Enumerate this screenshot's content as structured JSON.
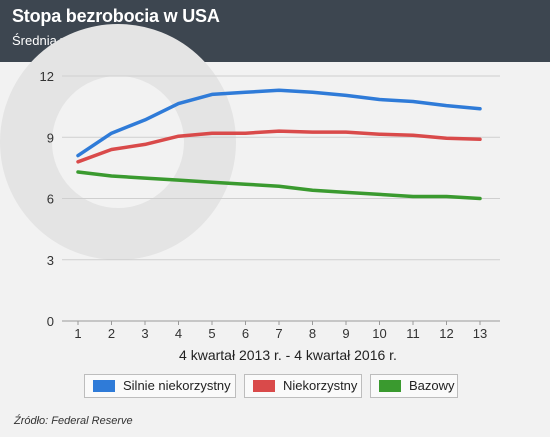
{
  "header": {
    "title": "Stopa bezrobocia w USA",
    "subtitle": "Średnia w kwartale, w proc."
  },
  "chart_data": {
    "type": "line",
    "title": "Stopa bezrobocia w USA",
    "subtitle": "Średnia w kwartale, w proc.",
    "xlabel": "4 kwartał 2013 r. - 4 kwartał 2016 r.",
    "ylabel": "",
    "x": [
      1,
      2,
      3,
      4,
      5,
      6,
      7,
      8,
      9,
      10,
      11,
      12,
      13
    ],
    "yticks": [
      0,
      3,
      6,
      9,
      12
    ],
    "ylim": [
      0,
      13
    ],
    "grid": true,
    "legend_position": "bottom",
    "series": [
      {
        "name": "Silnie niekorzystny",
        "color": "#2f7bd8",
        "values": [
          8.1,
          9.2,
          9.85,
          10.65,
          11.1,
          11.2,
          11.3,
          11.2,
          11.05,
          10.85,
          10.75,
          10.55,
          10.4
        ]
      },
      {
        "name": "Niekorzystny",
        "color": "#d94a4a",
        "values": [
          7.8,
          8.4,
          8.65,
          9.05,
          9.2,
          9.2,
          9.3,
          9.25,
          9.25,
          9.15,
          9.1,
          8.95,
          8.9
        ]
      },
      {
        "name": "Bazowy",
        "color": "#3a9a2f",
        "values": [
          7.3,
          7.1,
          7.0,
          6.9,
          6.8,
          6.7,
          6.6,
          6.4,
          6.3,
          6.2,
          6.1,
          6.1,
          6.0
        ]
      }
    ]
  },
  "source": "Źródło: Federal Reserve"
}
